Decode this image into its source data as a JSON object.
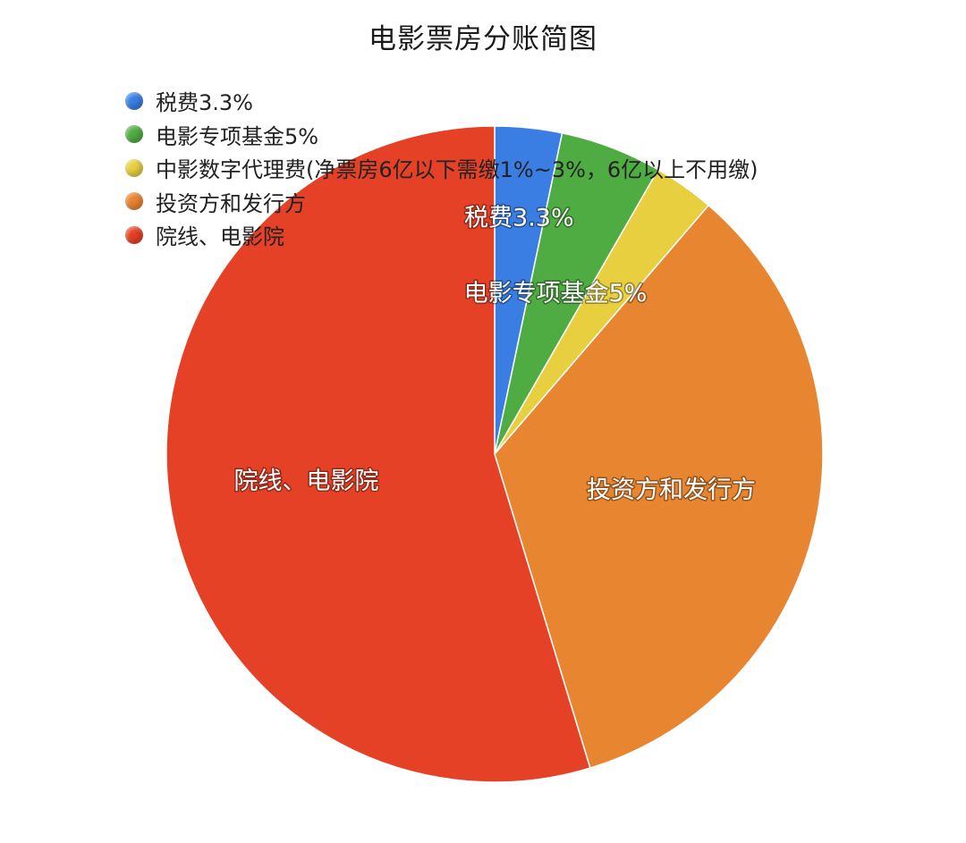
{
  "chart_data": {
    "type": "pie",
    "title": "电影票房分账简图",
    "slices": [
      {
        "label": "税费3.3%",
        "value": 3.3,
        "color": "#3a7ee3",
        "slice_label": "税费3.3%"
      },
      {
        "label": "电影专项基金5%",
        "value": 5,
        "color": "#4fac43",
        "slice_label": "电影专项基金5%"
      },
      {
        "label": "中影数字代理费(净票房6亿以下需缴1%~3%，6亿以上不用缴)",
        "value": 3,
        "color": "#e8cf40",
        "slice_label": ""
      },
      {
        "label": "投资方和发行方",
        "value": 34,
        "color": "#e88531",
        "slice_label": "投资方和发行方"
      },
      {
        "label": "院线、电影院",
        "value": 54.7,
        "color": "#e54126",
        "slice_label": "院线、电影院"
      }
    ],
    "legend_position": "top-left"
  }
}
